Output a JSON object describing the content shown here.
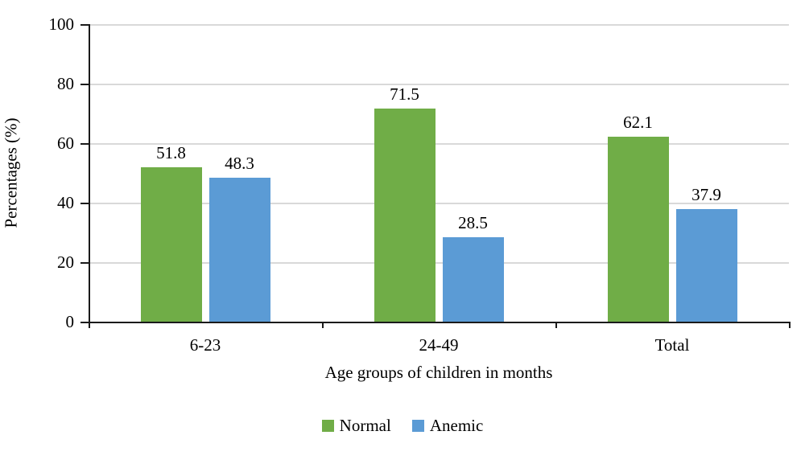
{
  "chart_data": {
    "type": "bar",
    "title": "",
    "categories": [
      "6-23",
      "24-49",
      "Total"
    ],
    "series": [
      {
        "name": "Normal",
        "color": "#70AD47",
        "values": [
          51.8,
          71.5,
          62.1
        ]
      },
      {
        "name": "Anemic",
        "color": "#5B9BD5",
        "values": [
          48.3,
          28.5,
          37.9
        ]
      }
    ],
    "xlabel": "Age groups of children in months",
    "ylabel": "Percentages (%)",
    "ylim": [
      0,
      100
    ],
    "yticks": [
      0,
      20,
      40,
      60,
      80,
      100
    ],
    "grid": true,
    "gridline_color": "#D9D9D9",
    "axis_color": "#1a1a1a",
    "legend_position": "bottom",
    "data_labels": true
  }
}
